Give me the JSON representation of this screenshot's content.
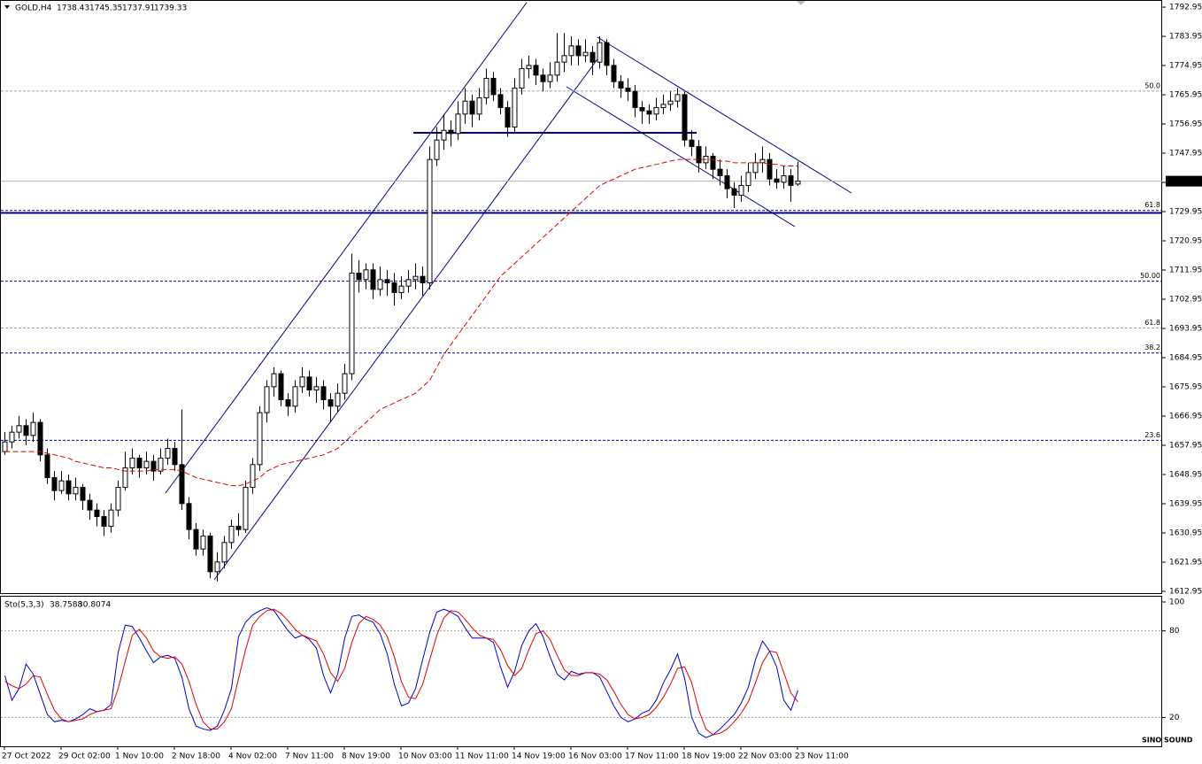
{
  "chart_data": {
    "type": "candlestick",
    "symbol": "GOLD,H4",
    "watermark": "SINO SOUND",
    "categories": [
      "27 Oct 2022",
      null,
      null,
      null,
      null,
      null,
      null,
      null,
      "29 Oct 02:00",
      null,
      null,
      null,
      null,
      null,
      null,
      null,
      "1 Nov 10:00",
      null,
      null,
      null,
      null,
      null,
      null,
      null,
      "2 Nov 18:00",
      null,
      null,
      null,
      null,
      null,
      null,
      null,
      "4 Nov 02:00",
      null,
      null,
      null,
      null,
      null,
      null,
      null,
      "7 Nov 11:00",
      null,
      null,
      null,
      null,
      null,
      null,
      null,
      "8 Nov 19:00",
      null,
      null,
      null,
      null,
      null,
      null,
      null,
      "10 Nov 03:00",
      null,
      null,
      null,
      null,
      null,
      null,
      null,
      "11 Nov 11:00",
      null,
      null,
      null,
      null,
      null,
      null,
      null,
      "14 Nov 19:00",
      null,
      null,
      null,
      null,
      null,
      null,
      null,
      "16 Nov 03:00",
      null,
      null,
      null,
      null,
      null,
      null,
      null,
      "17 Nov 11:00",
      null,
      null,
      null,
      null,
      null,
      null,
      null,
      "18 Nov 19:00",
      null,
      null,
      null,
      null,
      null,
      null,
      null,
      "22 Nov 03:00",
      null,
      null,
      null,
      null,
      null,
      null,
      null,
      "23 Nov 11:00"
    ],
    "open": [
      1656,
      1659,
      1662,
      1664,
      1661,
      1665,
      1655,
      1648,
      1644,
      1647,
      1643,
      1645,
      1641,
      1638,
      1636,
      1633,
      1638,
      1645,
      1651,
      1654,
      1651,
      1653,
      1650,
      1654,
      1657,
      1652,
      1640,
      1632,
      1626,
      1630,
      1619,
      1622,
      1628,
      1633,
      1632,
      1645,
      1652,
      1668,
      1676,
      1680,
      1672,
      1670,
      1676,
      1679,
      1675,
      1676,
      1672,
      1670,
      1674,
      1680,
      1711,
      1709,
      1712,
      1706,
      1709,
      1708,
      1705,
      1707,
      1709,
      1710,
      1708,
      1746,
      1752,
      1755,
      1754,
      1760,
      1764,
      1760,
      1765,
      1771,
      1766,
      1762,
      1756,
      1768,
      1774,
      1775,
      1772,
      1770,
      1772,
      1776,
      1778,
      1781,
      1778,
      1779,
      1776,
      1782,
      1775,
      1770,
      1768,
      1767,
      1762,
      1761,
      1760,
      1762,
      1763,
      1764,
      1766,
      1752,
      1750,
      1745,
      1747,
      1743,
      1741,
      1737,
      1735,
      1738,
      1742,
      1745,
      1746,
      1740,
      1739,
      1741,
      1738.43
    ],
    "high": [
      1662,
      1664,
      1667,
      1666,
      1668,
      1666,
      1657,
      1650,
      1650,
      1649,
      1648,
      1646,
      1643,
      1640,
      1638,
      1640,
      1647,
      1656,
      1657,
      1655,
      1656,
      1655,
      1657,
      1660,
      1659,
      1669,
      1642,
      1634,
      1632,
      1631,
      1625,
      1630,
      1635,
      1637,
      1647,
      1654,
      1670,
      1678,
      1682,
      1681,
      1674,
      1678,
      1682,
      1681,
      1679,
      1678,
      1674,
      1677,
      1683,
      1717,
      1715,
      1714,
      1714,
      1713,
      1712,
      1711,
      1710,
      1712,
      1714,
      1713,
      1750,
      1756,
      1760,
      1758,
      1764,
      1768,
      1766,
      1768,
      1774,
      1773,
      1768,
      1764,
      1771,
      1777,
      1778,
      1777,
      1774,
      1776,
      1785,
      1785,
      1784,
      1783,
      1783,
      1781,
      1784,
      1783,
      1777,
      1772,
      1771,
      1769,
      1764,
      1763,
      1765,
      1766,
      1767,
      1768,
      1767,
      1755,
      1752,
      1750,
      1748,
      1746,
      1743,
      1739,
      1741,
      1745,
      1748,
      1750,
      1748,
      1743,
      1744,
      1743,
      1745.35
    ],
    "low": [
      1655,
      1657,
      1660,
      1658,
      1659,
      1653,
      1646,
      1641,
      1643,
      1641,
      1641,
      1638,
      1635,
      1633,
      1630,
      1631,
      1636,
      1644,
      1649,
      1648,
      1649,
      1647,
      1649,
      1652,
      1650,
      1638,
      1629,
      1624,
      1624,
      1617,
      1616,
      1620,
      1626,
      1630,
      1631,
      1643,
      1650,
      1665,
      1673,
      1670,
      1667,
      1668,
      1674,
      1673,
      1671,
      1669,
      1665,
      1668,
      1672,
      1678,
      1705,
      1706,
      1703,
      1704,
      1704,
      1701,
      1703,
      1705,
      1706,
      1704,
      1706,
      1744,
      1749,
      1750,
      1752,
      1757,
      1756,
      1758,
      1763,
      1764,
      1760,
      1753,
      1754,
      1766,
      1771,
      1769,
      1767,
      1768,
      1770,
      1773,
      1775,
      1775,
      1776,
      1772,
      1774,
      1772,
      1768,
      1765,
      1764,
      1759,
      1757,
      1757,
      1758,
      1760,
      1761,
      1762,
      1750,
      1747,
      1742,
      1743,
      1740,
      1738,
      1734,
      1731,
      1733,
      1736,
      1740,
      1742,
      1738,
      1737,
      1737,
      1733,
      1737.91
    ],
    "close": [
      1659,
      1662,
      1664,
      1661,
      1665,
      1655,
      1648,
      1644,
      1647,
      1643,
      1645,
      1641,
      1638,
      1636,
      1633,
      1638,
      1645,
      1651,
      1654,
      1651,
      1653,
      1650,
      1654,
      1657,
      1652,
      1640,
      1632,
      1626,
      1630,
      1619,
      1622,
      1628,
      1633,
      1632,
      1645,
      1652,
      1668,
      1676,
      1680,
      1672,
      1670,
      1676,
      1679,
      1675,
      1676,
      1672,
      1670,
      1674,
      1680,
      1711,
      1709,
      1712,
      1706,
      1709,
      1708,
      1705,
      1707,
      1709,
      1710,
      1708,
      1746,
      1752,
      1755,
      1754,
      1760,
      1764,
      1760,
      1765,
      1771,
      1766,
      1762,
      1756,
      1768,
      1774,
      1775,
      1772,
      1770,
      1772,
      1776,
      1778,
      1781,
      1778,
      1779,
      1776,
      1782,
      1775,
      1770,
      1768,
      1767,
      1762,
      1761,
      1760,
      1762,
      1763,
      1764,
      1766,
      1752,
      1750,
      1745,
      1747,
      1743,
      1741,
      1737,
      1735,
      1738,
      1742,
      1745,
      1746,
      1740,
      1739,
      1741,
      1738,
      1739.33
    ],
    "ma": {
      "color": "#e00000",
      "values": [
        1656,
        1656,
        1656,
        1656,
        1656,
        1656,
        1655.5,
        1655,
        1654.5,
        1654,
        1653,
        1652.5,
        1652,
        1651.5,
        1651,
        1651,
        1650.5,
        1650,
        1650,
        1650,
        1650,
        1650.5,
        1650.5,
        1650.5,
        1650.5,
        1650,
        1649,
        1648,
        1647.5,
        1647,
        1646.5,
        1646,
        1645.5,
        1645.5,
        1646,
        1647,
        1648,
        1650,
        1651,
        1652,
        1652.5,
        1653,
        1653.5,
        1654,
        1654.5,
        1655,
        1656,
        1657,
        1659,
        1661,
        1663,
        1665,
        1667,
        1669,
        1670,
        1671,
        1672,
        1673,
        1674,
        1676,
        1678,
        1682,
        1686,
        1689,
        1692,
        1695,
        1698,
        1701,
        1704,
        1707,
        1710,
        1712,
        1714,
        1716,
        1718,
        1720,
        1722,
        1724,
        1726,
        1728,
        1730,
        1732,
        1734,
        1736,
        1738,
        1739,
        1740,
        1741,
        1742,
        1743,
        1743.5,
        1744,
        1744.5,
        1745,
        1745.5,
        1746,
        1746,
        1746,
        1746,
        1746,
        1746,
        1745.5,
        1745.5,
        1745,
        1745,
        1745,
        1745,
        1745,
        1744.5,
        1744.5,
        1744,
        1744,
        1744
      ]
    },
    "ylim": [
      1612.4,
      1794.6
    ],
    "yticks": [
      1792.95,
      1783.95,
      1774.95,
      1765.95,
      1756.95,
      1747.95,
      1738.95,
      1729.95,
      1720.95,
      1711.95,
      1702.95,
      1693.95,
      1684.95,
      1675.95,
      1666.95,
      1657.95,
      1648.95,
      1639.95,
      1630.95,
      1621.95,
      1612.95
    ],
    "levels": [
      {
        "label": "50.0",
        "value": 1767.1,
        "color": "#a0a0a0"
      },
      {
        "label": "61.8",
        "value": 1730.3,
        "color": "#00008b"
      },
      {
        "label": "50.00",
        "value": 1708.5,
        "color": "#00008b"
      },
      {
        "label": "61.8",
        "value": 1694.1,
        "color": "#a0a0a0"
      },
      {
        "label": "38.2",
        "value": 1686.4,
        "color": "#00008b"
      },
      {
        "label": "23.6",
        "value": 1659.5,
        "color": "#00008b"
      }
    ],
    "stochastic": {
      "title": "Sto(5,3,3)",
      "ylim": [
        0,
        100
      ],
      "yticks": [
        100,
        80,
        20
      ],
      "levels": [
        80,
        20
      ],
      "series": [
        {
          "color": "#0000cd",
          "values": [
            49,
            32,
            40,
            57,
            50,
            36,
            22,
            17,
            18,
            17,
            19,
            22,
            26,
            24,
            25,
            29,
            65,
            84,
            83,
            75,
            66,
            58,
            62,
            63,
            61,
            48,
            26,
            14,
            12,
            11,
            14,
            25,
            40,
            76,
            86,
            91,
            94,
            96,
            94,
            87,
            80,
            75,
            77,
            74,
            68,
            49,
            37,
            50,
            75,
            90,
            91,
            88,
            86,
            78,
            64,
            43,
            28,
            30,
            40,
            60,
            79,
            93,
            95,
            93,
            90,
            82,
            75,
            75,
            75,
            72,
            55,
            41,
            52,
            70,
            80,
            85,
            76,
            62,
            50,
            46,
            52,
            50,
            51,
            51,
            48,
            38,
            28,
            20,
            17,
            19,
            23,
            25,
            32,
            44,
            53,
            64,
            47,
            20,
            9,
            6,
            8,
            12,
            17,
            22,
            30,
            41,
            60,
            73,
            66,
            55,
            32,
            25,
            38.7588
          ]
        },
        {
          "color": "#e00000",
          "values": [
            45,
            42,
            40,
            43,
            49,
            48,
            36,
            25,
            19,
            17,
            18,
            19,
            22,
            24,
            25,
            26,
            40,
            59,
            77,
            81,
            75,
            66,
            62,
            61,
            62,
            57,
            45,
            29,
            17,
            12,
            12,
            17,
            26,
            47,
            67,
            84,
            90,
            94,
            95,
            92,
            87,
            81,
            77,
            75,
            73,
            64,
            51,
            45,
            54,
            72,
            85,
            90,
            88,
            84,
            76,
            62,
            45,
            34,
            33,
            43,
            60,
            77,
            89,
            94,
            93,
            88,
            82,
            77,
            75,
            74,
            67,
            56,
            49,
            54,
            67,
            78,
            80,
            74,
            63,
            53,
            49,
            49,
            51,
            51,
            50,
            46,
            38,
            29,
            22,
            19,
            20,
            22,
            27,
            34,
            43,
            54,
            55,
            44,
            25,
            12,
            8,
            9,
            12,
            17,
            23,
            31,
            44,
            58,
            66,
            65,
            51,
            37,
            30.8074
          ]
        }
      ]
    }
  }
}
